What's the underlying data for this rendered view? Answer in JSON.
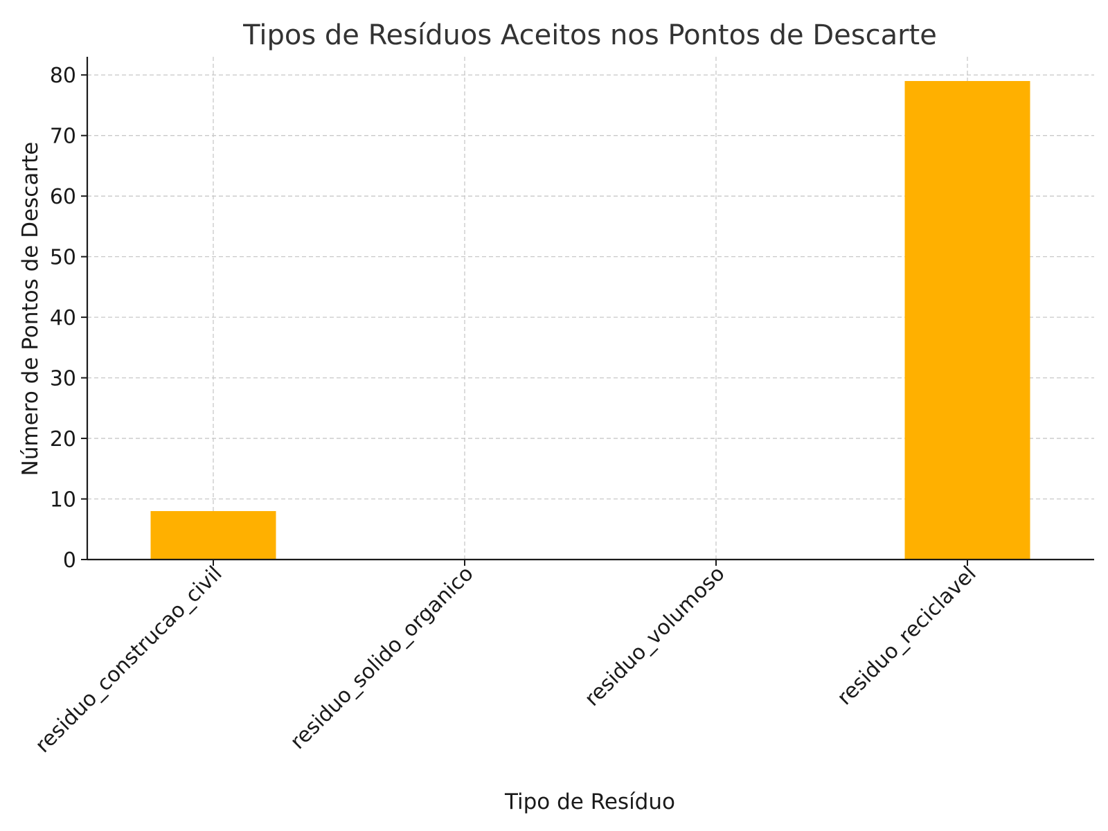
{
  "chart_data": {
    "type": "bar",
    "title": "Tipos de Resíduos Aceitos nos Pontos de Descarte",
    "xlabel": "Tipo de Resíduo",
    "ylabel": "Número de Pontos de Descarte",
    "categories": [
      "residuo_construcao_civil",
      "residuo_solido_organico",
      "residuo_volumoso",
      "residuo_reciclavel"
    ],
    "values": [
      8,
      0,
      0,
      79
    ],
    "ylim": [
      0,
      83
    ],
    "yticks": [
      0,
      10,
      20,
      30,
      40,
      50,
      60,
      70,
      80
    ],
    "grid": true,
    "bar_color": "#FFB000"
  }
}
